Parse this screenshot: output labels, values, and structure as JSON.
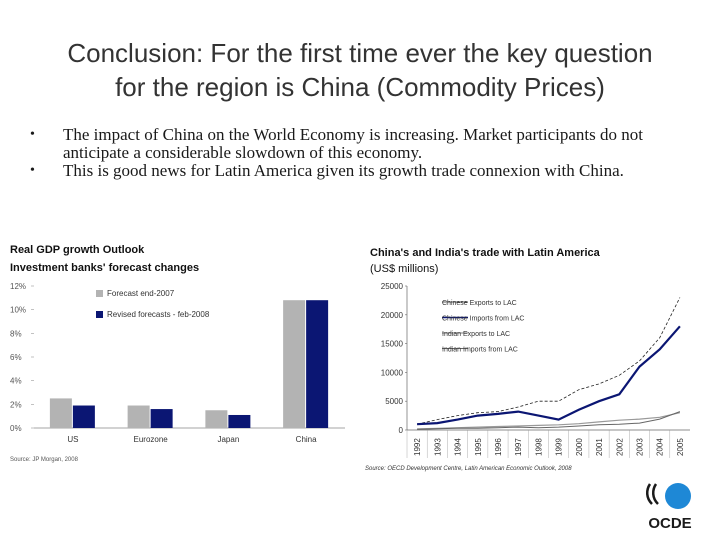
{
  "slide": {
    "title_line1": "Conclusion: For the first time ever the key question",
    "title_line2": "for the region is China (Commodity Prices)",
    "bullets": [
      "The impact of China on the World Economy is increasing. Market participants do not anticipate a considerable slowdown of this economy.",
      "This is good news for Latin America given its growth trade connexion with China."
    ],
    "bullet_glyph": "•"
  },
  "logo": {
    "text": "OCDE",
    "color": "#1a1a1a",
    "accent": "#1e88d6"
  },
  "chart_data": [
    {
      "type": "bar",
      "title": "Real GDP growth Outlook",
      "subtitle": "Investment banks' forecast changes",
      "categories": [
        "US",
        "Eurozone",
        "Japan",
        "China"
      ],
      "series": [
        {
          "name": "Forecast end-2007",
          "color": "#b3b3b3",
          "values": [
            2.5,
            1.9,
            1.5,
            10.8
          ]
        },
        {
          "name": "Revised forecasts - feb-2008",
          "color": "#0b1673",
          "values": [
            1.9,
            1.6,
            1.1,
            10.8
          ]
        }
      ],
      "yticks": [
        "0%",
        "2%",
        "4%",
        "6%",
        "8%",
        "10%",
        "12%"
      ],
      "ylim": [
        0,
        12
      ],
      "legend": "top-center",
      "source": "Source: JP Morgan, 2008"
    },
    {
      "type": "line",
      "title": "China's and India's trade with Latin America",
      "subtitle": "(US$ millions)",
      "x": [
        "1992",
        "1993",
        "1994",
        "1995",
        "1996",
        "1997",
        "1998",
        "1999",
        "2000",
        "2001",
        "2002",
        "2003",
        "2004",
        "2005"
      ],
      "series": [
        {
          "name": "Chinese Exports to LAC",
          "color": "#222222",
          "width": 0.8,
          "dash": "3,2",
          "values": [
            1000,
            1800,
            2500,
            3000,
            3200,
            4000,
            5000,
            5000,
            7000,
            8000,
            9500,
            12000,
            16000,
            23000
          ]
        },
        {
          "name": "Chinese Imports from LAC",
          "color": "#0b1673",
          "width": 2.2,
          "dash": "",
          "values": [
            1000,
            1200,
            1800,
            2500,
            2800,
            3200,
            2500,
            1800,
            3500,
            5000,
            6200,
            11000,
            14000,
            18000
          ]
        },
        {
          "name": "Indian Exports to LAC",
          "color": "#999999",
          "width": 1.2,
          "dash": "",
          "values": [
            200,
            300,
            400,
            500,
            600,
            700,
            800,
            900,
            1100,
            1400,
            1700,
            1900,
            2200,
            3000
          ]
        },
        {
          "name": "Indian Imports from LAC",
          "color": "#666666",
          "width": 1.0,
          "dash": "",
          "values": [
            100,
            200,
            300,
            300,
            400,
            500,
            400,
            500,
            700,
            900,
            1000,
            1200,
            1900,
            3200
          ]
        }
      ],
      "yticks": [
        "0",
        "5000",
        "10000",
        "15000",
        "20000",
        "25000"
      ],
      "ylim": [
        0,
        25000
      ],
      "legend": "top-center",
      "source": "Source: OECD Development Centre, Latin American Economic Outlook, 2008"
    }
  ]
}
